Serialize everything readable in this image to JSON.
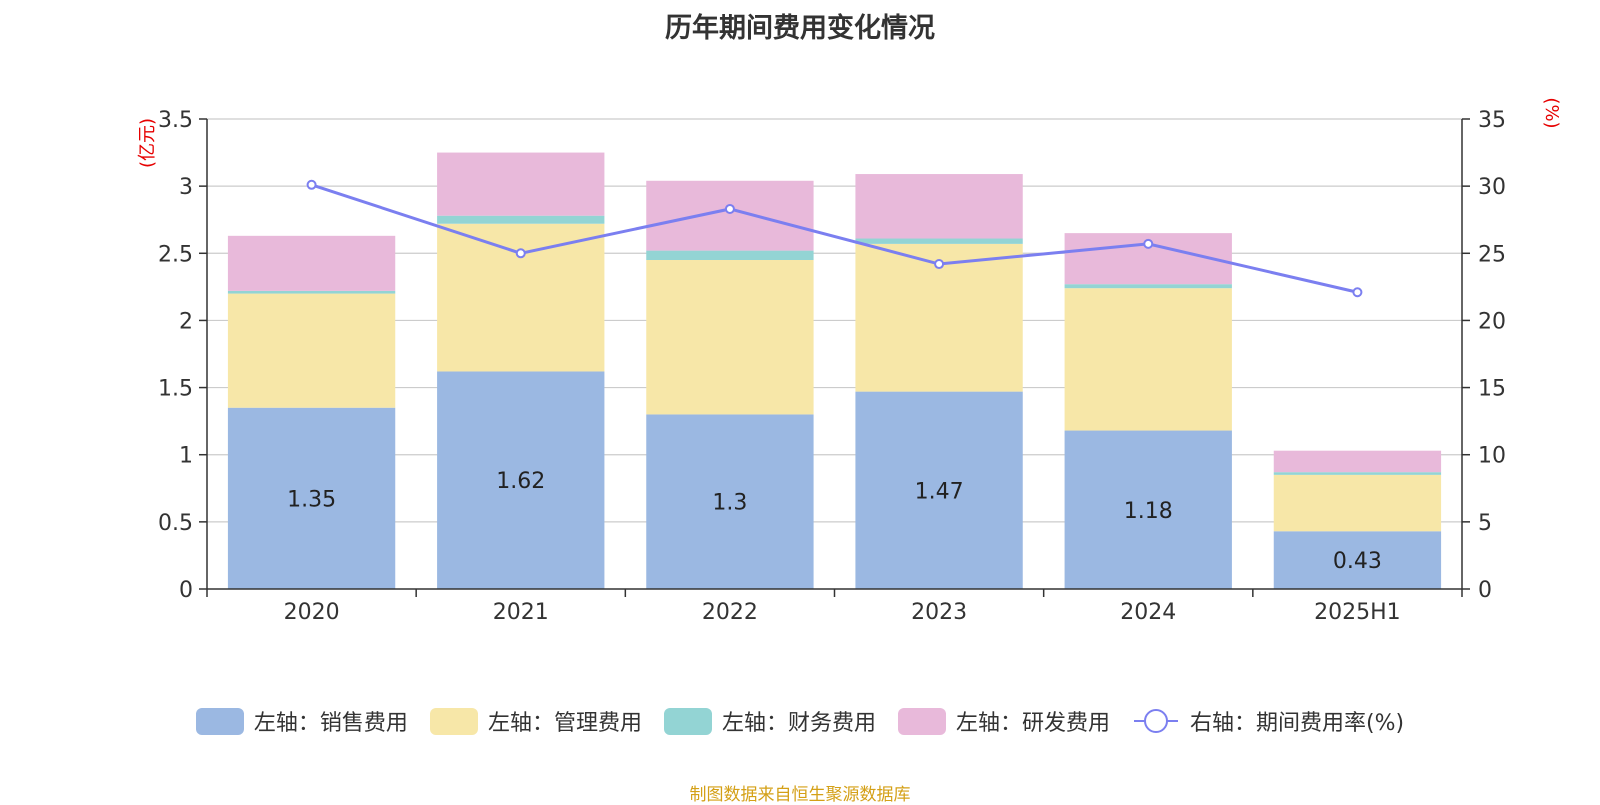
{
  "page_title": "历年期间费用变化情况",
  "source_note": "制图数据来自恒生聚源数据库",
  "chart_data": {
    "type": "bar",
    "stacked": true,
    "title": "历年期间费用变化情况",
    "categories": [
      "2020",
      "2021",
      "2022",
      "2023",
      "2024",
      "2025H1"
    ],
    "left_axis": {
      "unit_label": "(亿元)",
      "ylim": [
        0,
        3.5
      ],
      "ticks": [
        "0",
        "0.5",
        "1",
        "1.5",
        "2",
        "2.5",
        "3",
        "3.5"
      ]
    },
    "right_axis": {
      "unit_label": "(%)",
      "ylim": [
        0,
        35
      ],
      "ticks": [
        "0",
        "5",
        "10",
        "15",
        "20",
        "25",
        "30",
        "35"
      ]
    },
    "series": [
      {
        "name": "左轴：销售费用",
        "axis": "left",
        "color": "#9bb8e2",
        "values": [
          1.35,
          1.62,
          1.3,
          1.47,
          1.18,
          0.43
        ],
        "show_labels": true
      },
      {
        "name": "左轴：管理费用",
        "axis": "left",
        "color": "#f7e7a8",
        "values": [
          0.85,
          1.1,
          1.15,
          1.1,
          1.06,
          0.42
        ]
      },
      {
        "name": "左轴：财务费用",
        "axis": "left",
        "color": "#93d4d4",
        "values": [
          0.02,
          0.06,
          0.07,
          0.04,
          0.03,
          0.02
        ]
      },
      {
        "name": "左轴：研发费用",
        "axis": "left",
        "color": "#e8b9da",
        "values": [
          0.41,
          0.47,
          0.52,
          0.48,
          0.38,
          0.16
        ]
      },
      {
        "name": "右轴：期间费用率(%)",
        "axis": "right",
        "type": "line",
        "color": "#7b7ff0",
        "values": [
          30.1,
          25.0,
          28.3,
          24.2,
          25.7,
          22.1
        ]
      }
    ],
    "grid": true,
    "legend_position": "bottom"
  }
}
